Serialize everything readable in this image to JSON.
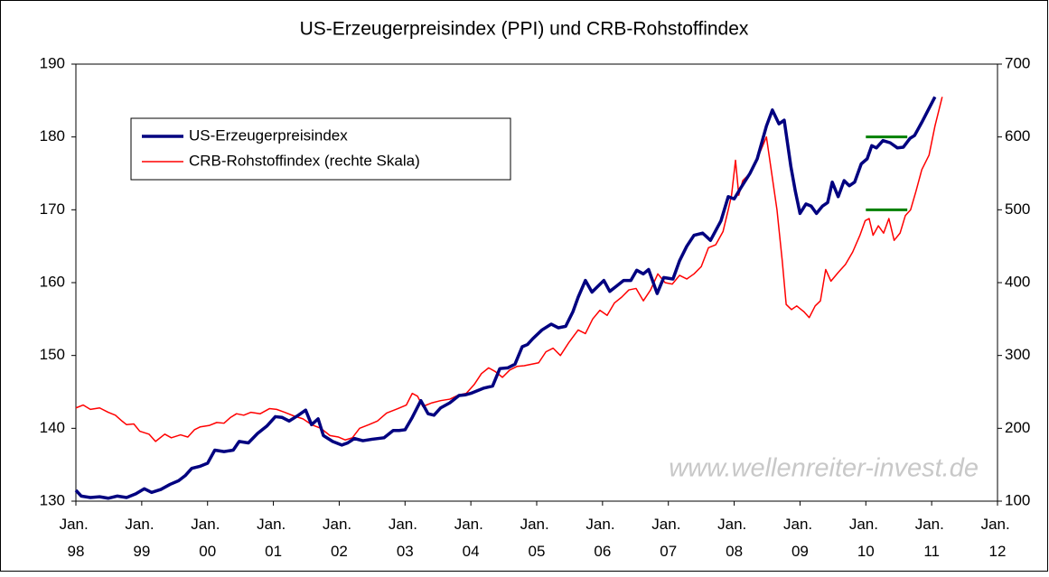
{
  "chart_data": {
    "type": "line",
    "title": "US-Erzeugerpreisindex (PPI) und CRB-Rohstoffindex",
    "watermark": "www.wellenreiter-invest.de",
    "xlim": [
      1998,
      2012
    ],
    "xticks": [
      {
        "value": 1998,
        "label": "Jan. 98"
      },
      {
        "value": 1999,
        "label": "Jan. 99"
      },
      {
        "value": 2000,
        "label": "Jan. 00"
      },
      {
        "value": 2001,
        "label": "Jan. 01"
      },
      {
        "value": 2002,
        "label": "Jan. 02"
      },
      {
        "value": 2003,
        "label": "Jan. 03"
      },
      {
        "value": 2004,
        "label": "Jan. 04"
      },
      {
        "value": 2005,
        "label": "Jan. 05"
      },
      {
        "value": 2006,
        "label": "Jan. 06"
      },
      {
        "value": 2007,
        "label": "Jan. 07"
      },
      {
        "value": 2008,
        "label": "Jan. 08"
      },
      {
        "value": 2009,
        "label": "Jan. 09"
      },
      {
        "value": 2010,
        "label": "Jan. 10"
      },
      {
        "value": 2011,
        "label": "Jan. 11"
      },
      {
        "value": 2012,
        "label": "Jan. 12"
      }
    ],
    "ylim": [
      130,
      190
    ],
    "yticks": [
      130,
      140,
      150,
      160,
      170,
      180,
      190
    ],
    "y2lim": [
      100,
      700
    ],
    "y2ticks": [
      100,
      200,
      300,
      400,
      500,
      600,
      700
    ],
    "grid": false,
    "legend": "upper left",
    "series": [
      {
        "name": "US-Erzeugerpreisindex",
        "color": "#000080",
        "axis": "y",
        "x": [
          1998.0,
          1998.08,
          1998.22,
          1998.36,
          1998.49,
          1998.63,
          1998.77,
          1998.91,
          1999.04,
          1999.15,
          1999.29,
          1999.43,
          1999.56,
          1999.66,
          1999.76,
          1999.89,
          2000.0,
          2000.11,
          2000.25,
          2000.39,
          2000.48,
          2000.62,
          2000.76,
          2000.9,
          2001.03,
          2001.13,
          2001.24,
          2001.38,
          2001.49,
          2001.58,
          2001.68,
          2001.76,
          2001.9,
          2002.04,
          2002.13,
          2002.23,
          2002.36,
          2002.5,
          2002.68,
          2002.82,
          2002.91,
          2003.0,
          2003.11,
          2003.24,
          2003.35,
          2003.44,
          2003.54,
          2003.68,
          2003.82,
          2003.92,
          2004.0,
          2004.19,
          2004.33,
          2004.44,
          2004.56,
          2004.67,
          2004.78,
          2004.86,
          2004.94,
          2005.08,
          2005.22,
          2005.33,
          2005.44,
          2005.55,
          2005.63,
          2005.74,
          2005.84,
          2005.93,
          2006.02,
          2006.11,
          2006.21,
          2006.32,
          2006.43,
          2006.52,
          2006.62,
          2006.7,
          2006.83,
          2006.93,
          2007.07,
          2007.17,
          2007.28,
          2007.39,
          2007.52,
          2007.64,
          2007.8,
          2007.91,
          2008.0,
          2008.1,
          2008.24,
          2008.35,
          2008.49,
          2008.58,
          2008.68,
          2008.76,
          2008.86,
          2008.93,
          2009.0,
          2009.09,
          2009.17,
          2009.25,
          2009.34,
          2009.42,
          2009.49,
          2009.58,
          2009.67,
          2009.75,
          2009.83,
          2009.93,
          2010.02,
          2010.09,
          2010.16,
          2010.26,
          2010.37,
          2010.48,
          2010.57,
          2010.67,
          2010.74,
          2010.85,
          2011.05
        ],
        "values": [
          131.5,
          130.7,
          130.5,
          130.6,
          130.4,
          130.7,
          130.5,
          131,
          131.7,
          131.2,
          131.6,
          132.3,
          132.8,
          133.5,
          134.5,
          134.8,
          135.2,
          137,
          136.8,
          137,
          138.2,
          138,
          139.3,
          140.3,
          141.6,
          141.5,
          141,
          141.8,
          142.5,
          140.5,
          141.3,
          139,
          138.2,
          137.7,
          138,
          138.6,
          138.3,
          138.5,
          138.7,
          139.7,
          139.7,
          139.8,
          141.5,
          143.8,
          142,
          141.8,
          142.8,
          143.5,
          144.5,
          144.6,
          144.8,
          145.5,
          145.8,
          148.2,
          148.3,
          148.8,
          151.2,
          151.5,
          152.3,
          153.5,
          154.3,
          153.8,
          154,
          156,
          158,
          160.3,
          158.7,
          159.5,
          160.3,
          158.8,
          159.5,
          160.3,
          160.3,
          161.7,
          161.2,
          161.8,
          158.5,
          160.7,
          160.5,
          163,
          165,
          166.5,
          166.8,
          165.8,
          168.5,
          171.8,
          171.5,
          173,
          175,
          177,
          181.5,
          183.7,
          181.8,
          182.3,
          176,
          172.5,
          169.5,
          170.8,
          170.5,
          169.5,
          170.5,
          171,
          173.8,
          171.8,
          174,
          173.3,
          173.8,
          176.3,
          177,
          178.8,
          178.5,
          179.5,
          179.2,
          178.5,
          178.6,
          179.8,
          180.2,
          182,
          185.5
        ]
      },
      {
        "name": "CRB-Rohstoffindex (rechte Skala)",
        "color": "#ff0000",
        "axis": "y2",
        "x": [
          1998.0,
          1998.11,
          1998.22,
          1998.36,
          1998.49,
          1998.6,
          1998.7,
          1998.77,
          1998.88,
          1998.97,
          1999.11,
          1999.21,
          1999.35,
          1999.45,
          1999.59,
          1999.7,
          1999.8,
          1999.89,
          2000.03,
          2000.14,
          2000.25,
          2000.35,
          2000.44,
          2000.55,
          2000.66,
          2000.8,
          2000.94,
          2001.05,
          2001.17,
          2001.31,
          2001.45,
          2001.58,
          2001.72,
          2001.86,
          2001.99,
          2002.09,
          2002.2,
          2002.31,
          2002.45,
          2002.58,
          2002.72,
          2002.89,
          2003.02,
          2003.11,
          2003.19,
          2003.27,
          2003.41,
          2003.54,
          2003.68,
          2003.82,
          2003.93,
          2004.05,
          2004.16,
          2004.27,
          2004.37,
          2004.48,
          2004.59,
          2004.7,
          2004.81,
          2004.92,
          2005.03,
          2005.14,
          2005.25,
          2005.36,
          2005.49,
          2005.63,
          2005.74,
          2005.85,
          2005.96,
          2006.07,
          2006.18,
          2006.29,
          2006.4,
          2006.51,
          2006.62,
          2006.73,
          2006.84,
          2006.95,
          2007.06,
          2007.17,
          2007.28,
          2007.39,
          2007.5,
          2007.61,
          2007.72,
          2007.83,
          2007.91,
          2007.96,
          2008.02,
          2008.07,
          2008.13,
          2008.24,
          2008.35,
          2008.49,
          2008.57,
          2008.65,
          2008.73,
          2008.79,
          2008.87,
          2008.95,
          2009.06,
          2009.14,
          2009.23,
          2009.31,
          2009.39,
          2009.47,
          2009.58,
          2009.69,
          2009.8,
          2009.91,
          2009.99,
          2010.05,
          2010.11,
          2010.19,
          2010.27,
          2010.35,
          2010.43,
          2010.52,
          2010.6,
          2010.68,
          2010.76,
          2010.85,
          2010.96,
          2011.05,
          2011.16
        ],
        "values": [
          228,
          232,
          226,
          228,
          222,
          218,
          210,
          205,
          206,
          196,
          192,
          182,
          192,
          187,
          191,
          188,
          198,
          202,
          204,
          208,
          207,
          215,
          220,
          218,
          222,
          220,
          227,
          226,
          222,
          217,
          213,
          205,
          200,
          190,
          188,
          184,
          187,
          200,
          205,
          210,
          221,
          227,
          232,
          248,
          244,
          230,
          235,
          238,
          240,
          246,
          248,
          260,
          275,
          283,
          278,
          270,
          280,
          285,
          286,
          288,
          290,
          305,
          310,
          300,
          318,
          335,
          330,
          350,
          362,
          355,
          372,
          380,
          390,
          392,
          375,
          390,
          412,
          400,
          398,
          410,
          405,
          412,
          422,
          448,
          452,
          470,
          500,
          520,
          568,
          520,
          540,
          550,
          570,
          600,
          550,
          500,
          430,
          370,
          363,
          368,
          360,
          352,
          368,
          375,
          418,
          402,
          414,
          425,
          442,
          465,
          485,
          488,
          465,
          478,
          468,
          488,
          458,
          468,
          492,
          500,
          525,
          555,
          575,
          615,
          655
        ]
      }
    ],
    "reference_lines": [
      {
        "axis": "y",
        "value": 180,
        "from": 2010,
        "to": 2010.63,
        "color": "#008000"
      },
      {
        "axis": "y",
        "value": 170,
        "from": 2010,
        "to": 2010.63,
        "color": "#008000"
      }
    ]
  }
}
